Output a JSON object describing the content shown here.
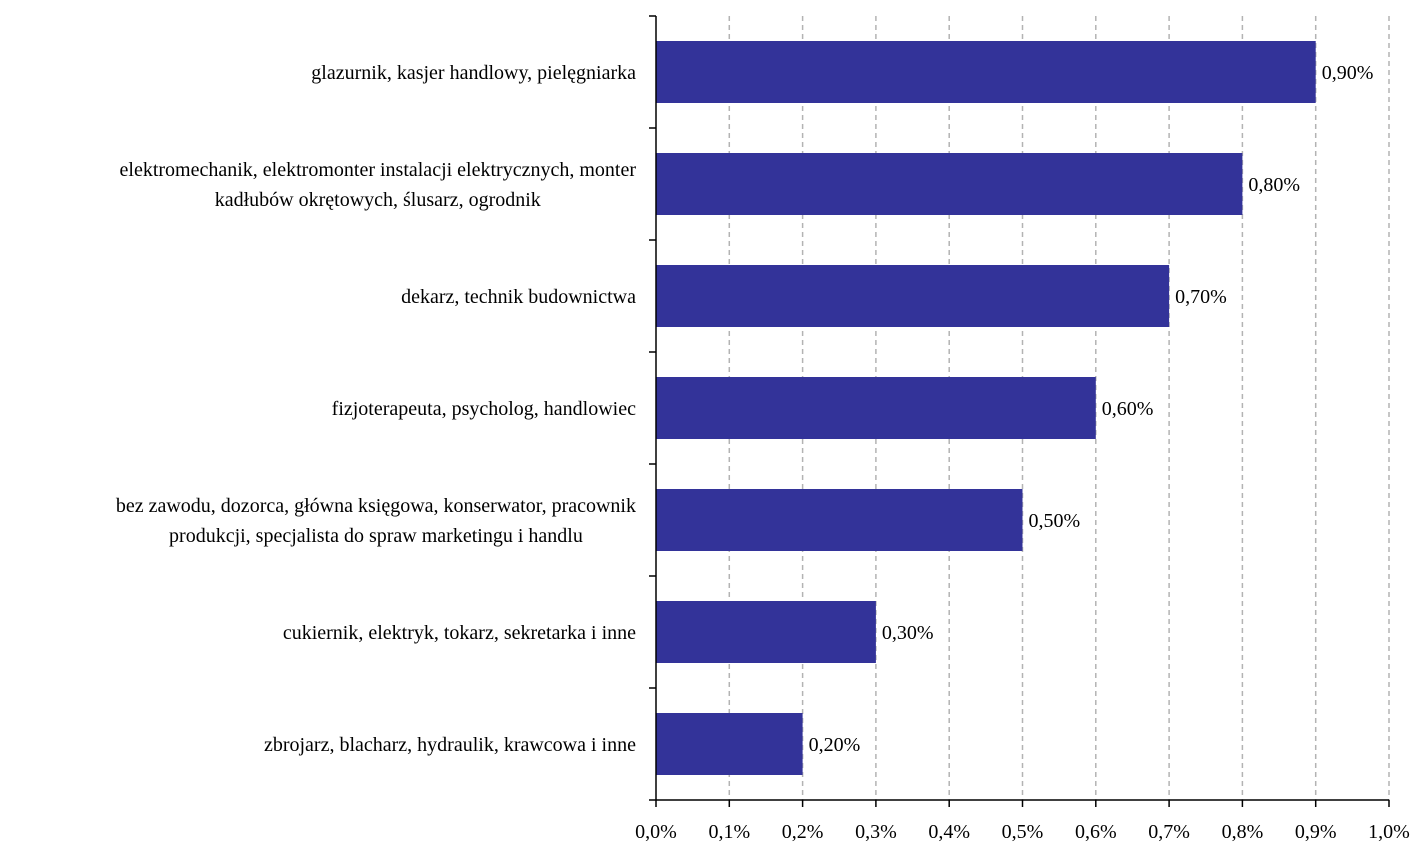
{
  "chart_data": {
    "type": "bar",
    "orientation": "horizontal",
    "categories": [
      [
        "glazurnik, kasjer handlowy, pielęgniarka"
      ],
      [
        "elektromechanik, elektromonter instalacji elektrycznych, monter",
        "kadłubów okrętowych, ślusarz, ogrodnik"
      ],
      [
        "dekarz, technik budownictwa"
      ],
      [
        "fizjoterapeuta, psycholog, handlowiec"
      ],
      [
        "bez zawodu, dozorca, główna księgowa, konserwator, pracownik",
        "produkcji, specjalista do spraw marketingu i handlu"
      ],
      [
        "cukiernik, elektryk, tokarz, sekretarka i inne"
      ],
      [
        "zbrojarz, blacharz, hydraulik, krawcowa i inne"
      ]
    ],
    "values": [
      0.9,
      0.8,
      0.7,
      0.6,
      0.5,
      0.3,
      0.2
    ],
    "data_labels": [
      "0,90%",
      "0,80%",
      "0,70%",
      "0,60%",
      "0,50%",
      "0,30%",
      "0,20%"
    ],
    "x_ticks": [
      0.0,
      0.1,
      0.2,
      0.3,
      0.4,
      0.5,
      0.6,
      0.7,
      0.8,
      0.9,
      1.0
    ],
    "x_tick_labels": [
      "0,0%",
      "0,1%",
      "0,2%",
      "0,3%",
      "0,4%",
      "0,5%",
      "0,6%",
      "0,7%",
      "0,8%",
      "0,9%",
      "1,0%"
    ],
    "xlim": [
      0.0,
      1.0
    ],
    "title": "",
    "xlabel": "",
    "ylabel": "",
    "grid": "vertical dashed",
    "legend": "none",
    "bar_color": "#333399",
    "grid_color": "#b3b3b3"
  }
}
